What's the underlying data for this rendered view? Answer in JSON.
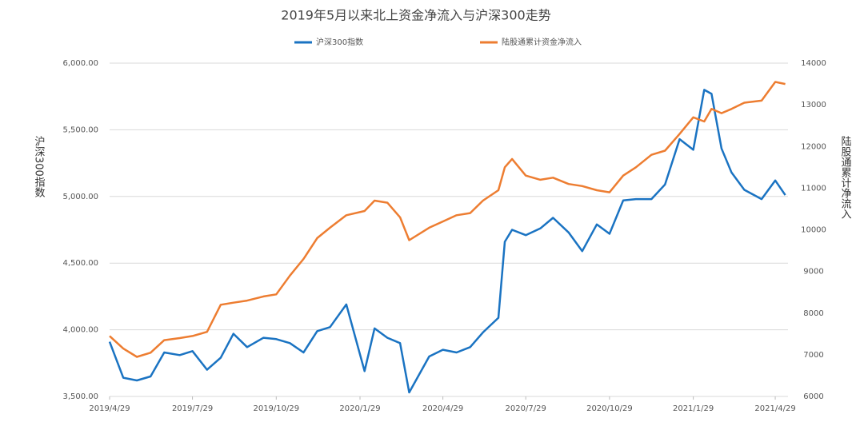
{
  "chart_data": {
    "type": "line",
    "title": "2019年5月以来北上资金净流入与沪深300走势",
    "ylabel": "沪深300指数",
    "y2label": "陆股通累计净流入",
    "x": [
      "2019/4/29",
      "2019/5/14",
      "2019/5/29",
      "2019/6/13",
      "2019/6/28",
      "2019/7/15",
      "2019/7/29",
      "2019/8/14",
      "2019/8/29",
      "2019/9/12",
      "2019/9/27",
      "2019/10/15",
      "2019/10/29",
      "2019/11/13",
      "2019/11/28",
      "2019/12/13",
      "2019/12/27",
      "2020/1/14",
      "2020/2/3",
      "2020/2/14",
      "2020/2/28",
      "2020/3/13",
      "2020/3/23",
      "2020/4/14",
      "2020/4/29",
      "2020/5/14",
      "2020/5/29",
      "2020/6/12",
      "2020/6/29",
      "2020/7/6",
      "2020/7/14",
      "2020/7/29",
      "2020/8/14",
      "2020/8/28",
      "2020/9/14",
      "2020/9/29",
      "2020/10/15",
      "2020/10/29",
      "2020/11/13",
      "2020/11/27",
      "2020/12/14",
      "2020/12/29",
      "2021/1/14",
      "2021/1/29",
      "2021/2/10",
      "2021/2/18",
      "2021/3/1",
      "2021/3/12",
      "2021/3/26",
      "2021/4/14",
      "2021/4/29",
      "2021/5/10"
    ],
    "xlim": [
      "2019/4/29",
      "2021/5/13"
    ],
    "xticks": [
      "2019/4/29",
      "2019/7/29",
      "2019/10/29",
      "2020/1/29",
      "2020/4/29",
      "2020/7/29",
      "2020/10/29",
      "2021/1/29",
      "2021/4/29"
    ],
    "series": [
      {
        "name": "沪深300指数",
        "color": "#1a73c2",
        "axis": "y",
        "values": [
          3910,
          3640,
          3620,
          3650,
          3830,
          3810,
          3840,
          3700,
          3790,
          3970,
          3870,
          3940,
          3930,
          3900,
          3830,
          3990,
          4020,
          4190,
          3690,
          4010,
          3940,
          3900,
          3530,
          3800,
          3850,
          3830,
          3870,
          3980,
          4090,
          4660,
          4750,
          4710,
          4760,
          4840,
          4730,
          4590,
          4790,
          4720,
          4970,
          4980,
          4980,
          5090,
          5430,
          5350,
          5800,
          5770,
          5360,
          5180,
          5050,
          4980,
          5120,
          5010
        ]
      },
      {
        "name": "陆股通累计资金净流入",
        "color": "#ed7d31",
        "axis": "y2",
        "values": [
          7450,
          7150,
          6950,
          7050,
          7350,
          7400,
          7450,
          7550,
          8200,
          8250,
          8300,
          8400,
          8450,
          8900,
          9300,
          9800,
          10050,
          10350,
          10450,
          10700,
          10650,
          10300,
          9750,
          10050,
          10200,
          10350,
          10400,
          10700,
          10950,
          11500,
          11700,
          11300,
          11200,
          11250,
          11100,
          11050,
          10950,
          10900,
          11300,
          11500,
          11800,
          11900,
          12300,
          12700,
          12600,
          12900,
          12800,
          12900,
          13050,
          13100,
          13550,
          13500
        ]
      }
    ],
    "ylim": [
      3500,
      6000
    ],
    "yticks": [
      {
        "value": 3500,
        "label": "3,500.00"
      },
      {
        "value": 4000,
        "label": "4,000.00"
      },
      {
        "value": 4500,
        "label": "4,500.00"
      },
      {
        "value": 5000,
        "label": "5,000.00"
      },
      {
        "value": 5500,
        "label": "5,500.00"
      },
      {
        "value": 6000,
        "label": "6,000.00"
      }
    ],
    "y2lim": [
      6000,
      14000
    ],
    "y2ticks": [
      6000,
      7000,
      8000,
      9000,
      10000,
      11000,
      12000,
      13000,
      14000
    ],
    "grid": true,
    "legend": "top"
  }
}
